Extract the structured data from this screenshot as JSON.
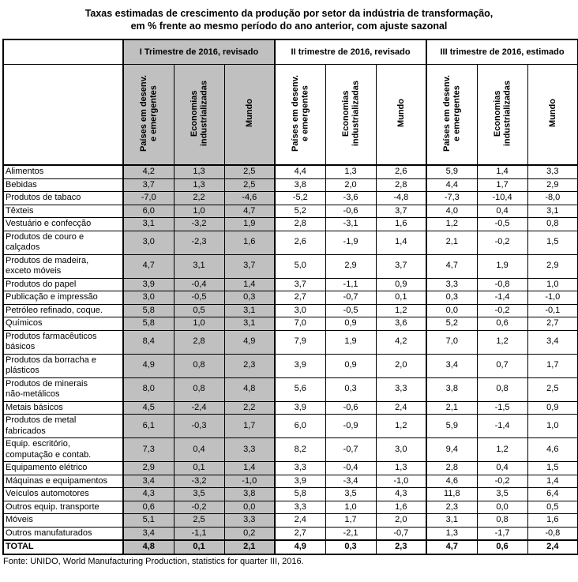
{
  "title": "Taxas estimadas de crescimento da produção por setor da indústria de transformação,\nem % frente ao mesmo período do ano anterior, com ajuste sazonal",
  "colors": {
    "highlight": "#c0c0c0",
    "border": "#000000"
  },
  "footer": "Fonte: UNIDO, World Manufacturing Production, statistics for quarter III, 2016.",
  "table": {
    "groups": [
      {
        "label": "I Trimestre de 2016, revisado",
        "highlight": true
      },
      {
        "label": "II trimestre de 2016, revisado",
        "highlight": false
      },
      {
        "label": "III trimestre de 2016, estimado",
        "highlight": false
      }
    ],
    "subcolumns": [
      "Países em desenv.\ne emergentes",
      "Economias\nindustrializadas",
      "Mundo"
    ],
    "rows": [
      {
        "label": "Alimentos",
        "values": [
          "4,2",
          "1,3",
          "2,5",
          "4,4",
          "1,3",
          "2,6",
          "5,9",
          "1,4",
          "3,3"
        ]
      },
      {
        "label": "Bebidas",
        "values": [
          "3,7",
          "1,3",
          "2,5",
          "3,8",
          "2,0",
          "2,8",
          "4,4",
          "1,7",
          "2,9"
        ]
      },
      {
        "label": "Produtos de tabaco",
        "values": [
          "-7,0",
          "2,2",
          "-4,6",
          "-5,2",
          "-3,6",
          "-4,8",
          "-7,3",
          "-10,4",
          "-8,0"
        ]
      },
      {
        "label": "Têxteis",
        "values": [
          "6,0",
          "1,0",
          "4,7",
          "5,2",
          "-0,6",
          "3,7",
          "4,0",
          "0,4",
          "3,1"
        ]
      },
      {
        "label": "Vestuário e confecção",
        "values": [
          "3,1",
          "-3,2",
          "1,9",
          "2,8",
          "-3,1",
          "1,6",
          "1,2",
          "-0,5",
          "0,8"
        ]
      },
      {
        "label": "Produtos de couro e\ncalçados",
        "values": [
          "3,0",
          "-2,3",
          "1,6",
          "2,6",
          "-1,9",
          "1,4",
          "2,1",
          "-0,2",
          "1,5"
        ]
      },
      {
        "label": "Produtos de madeira,\nexceto móveis",
        "values": [
          "4,7",
          "3,1",
          "3,7",
          "5,0",
          "2,9",
          "3,7",
          "4,7",
          "1,9",
          "2,9"
        ]
      },
      {
        "label": "Produtos do papel",
        "values": [
          "3,9",
          "-0,4",
          "1,4",
          "3,7",
          "-1,1",
          "0,9",
          "3,3",
          "-0,8",
          "1,0"
        ]
      },
      {
        "label": "Publicação e impressão",
        "values": [
          "3,0",
          "-0,5",
          "0,3",
          "2,7",
          "-0,7",
          "0,1",
          "0,3",
          "-1,4",
          "-1,0"
        ]
      },
      {
        "label": "Petróleo refinado, coque.",
        "values": [
          "5,8",
          "0,5",
          "3,1",
          "3,0",
          "-0,5",
          "1,2",
          "0,0",
          "-0,2",
          "-0,1"
        ]
      },
      {
        "label": "Químicos",
        "values": [
          "5,8",
          "1,0",
          "3,1",
          "7,0",
          "0,9",
          "3,6",
          "5,2",
          "0,6",
          "2,7"
        ]
      },
      {
        "label": "Produtos farmacêuticos\nbásicos",
        "values": [
          "8,4",
          "2,8",
          "4,9",
          "7,9",
          "1,9",
          "4,2",
          "7,0",
          "1,2",
          "3,4"
        ]
      },
      {
        "label": "Produtos da borracha e\nplásticos",
        "values": [
          "4,9",
          "0,8",
          "2,3",
          "3,9",
          "0,9",
          "2,0",
          "3,4",
          "0,7",
          "1,7"
        ]
      },
      {
        "label": "Produtos de minerais\nnão-metálicos",
        "values": [
          "8,0",
          "0,8",
          "4,8",
          "5,6",
          "0,3",
          "3,3",
          "3,8",
          "0,8",
          "2,5"
        ]
      },
      {
        "label": "Metais básicos",
        "values": [
          "4,5",
          "-2,4",
          "2,2",
          "3,9",
          "-0,6",
          "2,4",
          "2,1",
          "-1,5",
          "0,9"
        ]
      },
      {
        "label": "Produtos de metal\nfabricados",
        "values": [
          "6,1",
          "-0,3",
          "1,7",
          "6,0",
          "-0,9",
          "1,2",
          "5,9",
          "-1,4",
          "1,0"
        ]
      },
      {
        "label": "Equip. escritório,\ncomputação e contab.",
        "values": [
          "7,3",
          "0,4",
          "3,3",
          "8,2",
          "-0,7",
          "3,0",
          "9,4",
          "1,2",
          "4,6"
        ]
      },
      {
        "label": "Equipamento elétrico",
        "values": [
          "2,9",
          "0,1",
          "1,4",
          "3,3",
          "-0,4",
          "1,3",
          "2,8",
          "0,4",
          "1,5"
        ]
      },
      {
        "label": "Máquinas e equipamentos",
        "values": [
          "3,4",
          "-3,2",
          "-1,0",
          "3,9",
          "-3,4",
          "-1,0",
          "4,6",
          "-0,2",
          "1,4"
        ]
      },
      {
        "label": "Veículos automotores",
        "values": [
          "4,3",
          "3,5",
          "3,8",
          "5,8",
          "3,5",
          "4,3",
          "11,8",
          "3,5",
          "6,4"
        ]
      },
      {
        "label": "Outros equip. transporte",
        "values": [
          "0,6",
          "-0,2",
          "0,0",
          "3,3",
          "1,0",
          "1,6",
          "2,3",
          "0,0",
          "0,5"
        ]
      },
      {
        "label": "Móveis",
        "values": [
          "5,1",
          "2,5",
          "3,3",
          "2,4",
          "1,7",
          "2,0",
          "3,1",
          "0,8",
          "1,6"
        ]
      },
      {
        "label": "Outros manufaturados",
        "values": [
          "3,4",
          "-1,1",
          "0,2",
          "2,7",
          "-2,1",
          "-0,7",
          "1,3",
          "-1,7",
          "-0,8"
        ]
      }
    ],
    "total": {
      "label": "TOTAL",
      "values": [
        "4,8",
        "0,1",
        "2,1",
        "4,9",
        "0,3",
        "2,3",
        "4,7",
        "0,6",
        "2,4"
      ]
    }
  }
}
